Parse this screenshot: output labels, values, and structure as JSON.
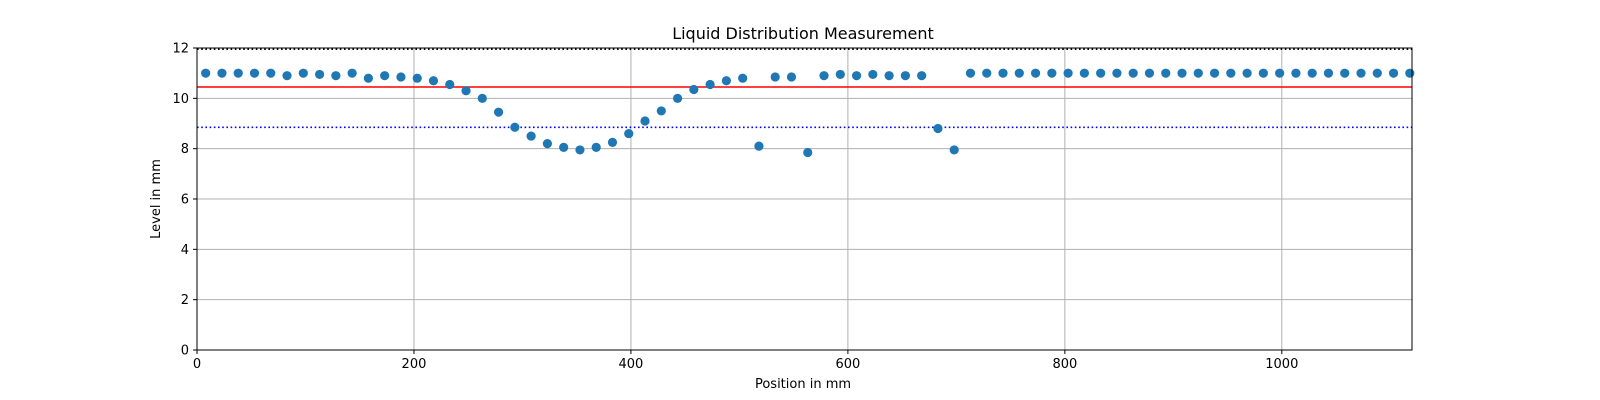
{
  "chart_data": {
    "type": "scatter",
    "title": "Liquid Distribution Measurement",
    "xlabel": "Position in mm",
    "ylabel": "Level in mm",
    "xlim": [
      0,
      1120
    ],
    "ylim": [
      0,
      12
    ],
    "xticks": [
      0,
      200,
      400,
      600,
      800,
      1000
    ],
    "yticks": [
      0,
      2,
      4,
      6,
      8,
      10,
      12
    ],
    "grid": true,
    "colors": {
      "points": "#1f77b4",
      "mean_line": "#ff0000",
      "lower_line": "#0000ff",
      "upper_line": "#000000",
      "grid": "#b0b0b0"
    },
    "reference_lines": [
      {
        "y": 10.45,
        "style": "solid",
        "color": "#ff0000"
      },
      {
        "y": 8.85,
        "style": "dotted",
        "color": "#0000ff"
      },
      {
        "y": 11.95,
        "style": "dotted",
        "color": "#000000"
      }
    ],
    "series": [
      {
        "x": [
          8,
          23,
          38,
          53,
          68,
          83,
          98,
          113,
          128,
          143,
          158,
          173,
          188,
          203,
          218,
          233,
          248,
          263,
          278,
          293,
          308,
          323,
          338,
          353,
          368,
          383,
          398,
          413,
          428,
          443,
          458,
          473,
          488,
          503,
          518,
          533,
          548,
          563,
          578,
          593,
          608,
          623,
          638,
          653,
          668,
          683,
          698,
          713,
          728,
          743,
          758,
          773,
          788,
          803,
          818,
          833,
          848,
          863,
          878,
          893,
          908,
          923,
          938,
          953,
          968,
          983,
          998,
          1013,
          1028,
          1043,
          1058,
          1073,
          1088,
          1103,
          1118
        ],
        "y": [
          11.0,
          11.0,
          11.0,
          11.0,
          11.0,
          10.9,
          11.0,
          10.95,
          10.9,
          11.0,
          10.8,
          10.9,
          10.85,
          10.8,
          10.7,
          10.55,
          10.3,
          10.0,
          9.45,
          8.85,
          8.5,
          8.2,
          8.05,
          7.95,
          8.05,
          8.25,
          8.6,
          9.1,
          9.5,
          10.0,
          10.35,
          10.55,
          10.7,
          10.8,
          8.1,
          10.85,
          10.85,
          7.85,
          10.9,
          10.95,
          10.9,
          10.95,
          10.9,
          10.9,
          10.9,
          8.8,
          7.95,
          11.0,
          11.0,
          11.0,
          11.0,
          11.0,
          11.0,
          11.0,
          11.0,
          11.0,
          11.0,
          11.0,
          11.0,
          11.0,
          11.0,
          11.0,
          11.0,
          11.0,
          11.0,
          11.0,
          11.0,
          11.0,
          11.0,
          11.0,
          11.0,
          11.0,
          11.0,
          11.0,
          11.0
        ]
      }
    ]
  }
}
